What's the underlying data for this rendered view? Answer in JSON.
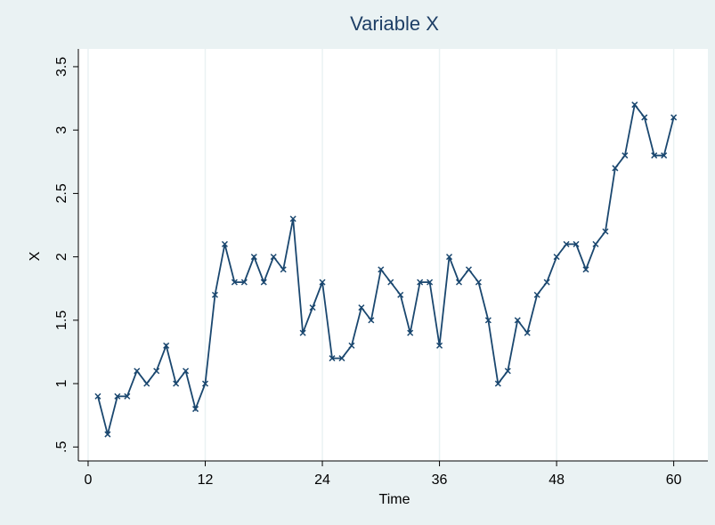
{
  "chart_data": {
    "type": "line",
    "title": "Variable X",
    "x_label": "Time",
    "y_label": "X",
    "x": [
      1,
      2,
      3,
      4,
      5,
      6,
      7,
      8,
      9,
      10,
      11,
      12,
      13,
      14,
      15,
      16,
      17,
      18,
      19,
      20,
      21,
      22,
      23,
      24,
      25,
      26,
      27,
      28,
      29,
      30,
      31,
      32,
      33,
      34,
      35,
      36,
      37,
      38,
      39,
      40,
      41,
      42,
      43,
      44,
      45,
      46,
      47,
      48,
      49,
      50,
      51,
      52,
      53,
      54,
      55,
      56,
      57,
      58,
      59,
      60
    ],
    "series": [
      {
        "name": "X",
        "color": "#1a476f",
        "values": [
          0.9,
          0.6,
          0.9,
          0.9,
          1.1,
          1.0,
          1.1,
          1.3,
          1.0,
          1.1,
          0.8,
          1.0,
          1.7,
          2.1,
          1.8,
          1.8,
          2.0,
          1.8,
          2.0,
          1.9,
          2.3,
          1.4,
          1.6,
          1.8,
          1.2,
          1.2,
          1.3,
          1.6,
          1.5,
          1.9,
          1.8,
          1.7,
          1.4,
          1.8,
          1.8,
          1.3,
          2.0,
          1.8,
          1.9,
          1.8,
          1.5,
          1.0,
          1.1,
          1.5,
          1.4,
          1.7,
          1.8,
          2.0,
          2.1,
          2.1,
          1.9,
          2.1,
          2.2,
          2.7,
          2.8,
          3.2,
          3.1,
          2.8,
          2.8,
          3.1
        ]
      }
    ],
    "xlim": [
      -1,
      63.5
    ],
    "xticks": [
      0,
      12,
      24,
      36,
      48,
      60
    ],
    "ylim": [
      0.39,
      3.64
    ],
    "yticks": [
      {
        "value": 0.5,
        "label": ".5"
      },
      1,
      1.5,
      2,
      2.5,
      3,
      3.5
    ],
    "grid": "x"
  }
}
